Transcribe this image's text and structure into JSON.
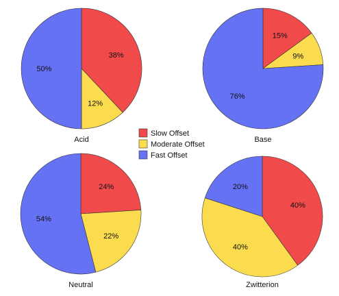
{
  "chart_data": {
    "type": "pie",
    "legend_position": "center",
    "legend": [
      {
        "label": "Slow Offset",
        "color": "#f04a4a"
      },
      {
        "label": "Moderate Offset",
        "color": "#fadc4e"
      },
      {
        "label": "Fast Offset",
        "color": "#6672f4"
      }
    ],
    "pies": [
      {
        "title": "Acid",
        "slices": [
          {
            "category": "Slow Offset",
            "value": 38,
            "label": "38%"
          },
          {
            "category": "Moderate Offset",
            "value": 12,
            "label": "12%"
          },
          {
            "category": "Fast Offset",
            "value": 50,
            "label": "50%"
          }
        ]
      },
      {
        "title": "Base",
        "slices": [
          {
            "category": "Slow Offset",
            "value": 15,
            "label": "15%"
          },
          {
            "category": "Moderate Offset",
            "value": 9,
            "label": "9%"
          },
          {
            "category": "Fast Offset",
            "value": 76,
            "label": "76%"
          }
        ]
      },
      {
        "title": "Neutral",
        "slices": [
          {
            "category": "Slow Offset",
            "value": 24,
            "label": "24%"
          },
          {
            "category": "Moderate Offset",
            "value": 22,
            "label": "22%"
          },
          {
            "category": "Fast Offset",
            "value": 54,
            "label": "54%"
          }
        ]
      },
      {
        "title": "Zwitterion",
        "slices": [
          {
            "category": "Slow Offset",
            "value": 40,
            "label": "40%"
          },
          {
            "category": "Moderate Offset",
            "value": 40,
            "label": "40%"
          },
          {
            "category": "Fast Offset",
            "value": 20,
            "label": "20%"
          }
        ]
      }
    ]
  }
}
